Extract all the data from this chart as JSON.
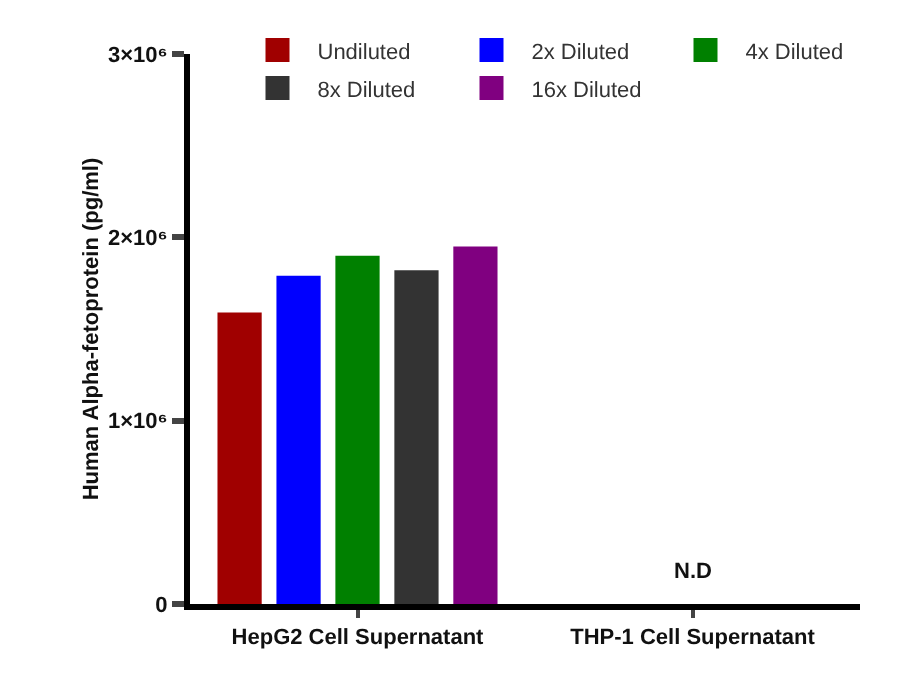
{
  "chart_data": {
    "type": "bar",
    "ylabel": "Human Alpha-fetoprotein (pg/ml)",
    "categories": [
      "HepG2 Cell Supernatant",
      "THP-1 Cell Supernatant"
    ],
    "series": [
      {
        "name": "Undiluted",
        "color": "#a00000",
        "values": [
          1590000,
          null
        ]
      },
      {
        "name": "2x Diluted",
        "color": "#0000ff",
        "values": [
          1790000,
          null
        ]
      },
      {
        "name": "4x Diluted",
        "color": "#008000",
        "values": [
          1900000,
          null
        ]
      },
      {
        "name": "8x Diluted",
        "color": "#333333",
        "values": [
          1820000,
          null
        ]
      },
      {
        "name": "16x Diluted",
        "color": "#800080",
        "values": [
          1950000,
          null
        ]
      }
    ],
    "ylim": [
      0,
      3000000
    ],
    "yticks": [
      {
        "value": 0,
        "label": "0"
      },
      {
        "value": 1000000,
        "label": "1×10⁶"
      },
      {
        "value": 2000000,
        "label": "2×10⁶"
      },
      {
        "value": 3000000,
        "label": "3×10⁶"
      }
    ],
    "annotations": [
      "N.D"
    ],
    "legend": "top",
    "grid": false
  }
}
